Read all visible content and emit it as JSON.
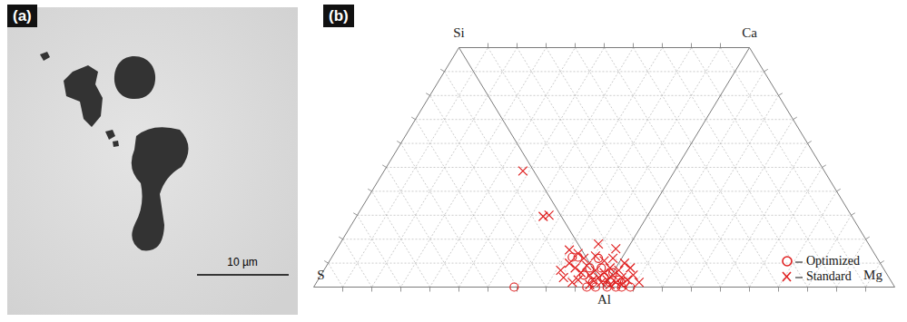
{
  "image_panel": {
    "label": "(a)",
    "scale_bar": "10 µm"
  },
  "chart_data": {
    "panel_label": "(b)",
    "type": "scatter",
    "corner_labels": {
      "bottom": [
        "S",
        "Al",
        "Mg"
      ],
      "top": [
        "Si",
        "Ca"
      ]
    },
    "xlim": [
      0,
      2
    ],
    "ylim": [
      0,
      1
    ],
    "tick_labels": false,
    "grid": true,
    "legend": "bottom-right",
    "series": [
      {
        "name": "Optimized",
        "color": "#e02020",
        "marker": "circle",
        "x": [
          0.69,
          0.89,
          0.91,
          0.98,
          1.04,
          1.06,
          1.09,
          0.93,
          0.96,
          1.0,
          1.02,
          0.99,
          1.05,
          1.01,
          0.94,
          0.97,
          1.07,
          1.03,
          0.95
        ],
        "values": [
          0.0,
          0.125,
          0.125,
          0.12,
          0.0,
          0.0,
          0.0,
          0.05,
          0.02,
          0.04,
          0.02,
          0.08,
          0.03,
          0.0,
          0.0,
          0.0,
          0.02,
          0.06,
          0.08
        ]
      },
      {
        "name": "Standard",
        "color": "#e02020",
        "marker": "x",
        "x": [
          0.72,
          0.79,
          0.81,
          0.88,
          0.91,
          0.88,
          0.9,
          0.92,
          0.94,
          0.95,
          0.96,
          0.97,
          0.98,
          0.99,
          1.0,
          1.01,
          1.02,
          1.03,
          1.04,
          1.05,
          1.06,
          1.07,
          1.08,
          0.93,
          0.97,
          1.0,
          1.03,
          0.86,
          0.89,
          0.91,
          0.95,
          1.02,
          1.06,
          1.1,
          1.12,
          0.85,
          1.09,
          0.98,
          1.04
        ],
        "values": [
          0.485,
          0.295,
          0.3,
          0.155,
          0.14,
          0.1,
          0.08,
          0.06,
          0.09,
          0.05,
          0.03,
          0.07,
          0.04,
          0.02,
          0.06,
          0.03,
          0.08,
          0.05,
          0.02,
          0.07,
          0.04,
          0.1,
          0.03,
          0.12,
          0.13,
          0.11,
          0.12,
          0.04,
          0.02,
          0.03,
          0.01,
          0.01,
          0.01,
          0.05,
          0.02,
          0.07,
          0.08,
          0.18,
          0.16
        ]
      }
    ]
  }
}
